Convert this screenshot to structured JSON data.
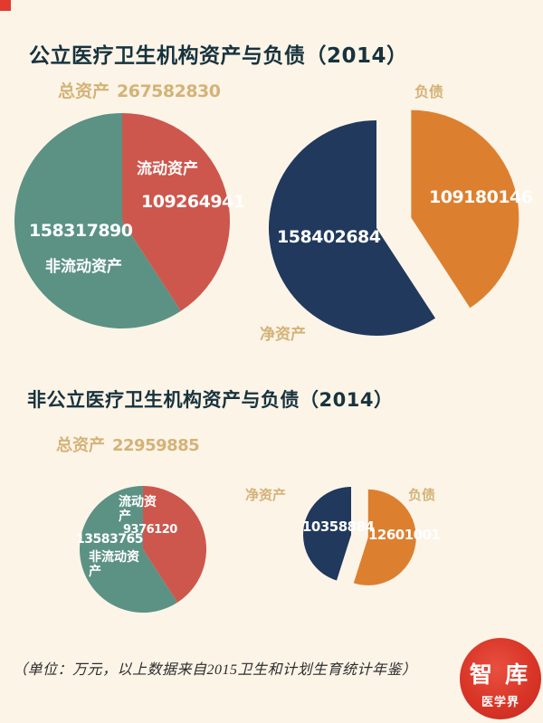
{
  "corner_color": "#e23a2e",
  "background_color": "#fdf4e8",
  "chart_data": [
    {
      "type": "pie",
      "title": "公立医疗卫生机构资产与负债（2014）",
      "total_label": "总资产",
      "total_value": 267582830,
      "pies": [
        {
          "name": "公立-资产构成",
          "slices": [
            {
              "label": "流动资产",
              "value": 109264941,
              "color": "#cd574d",
              "exploded": false
            },
            {
              "label": "非流动资产",
              "value": 158317890,
              "color": "#5b9284",
              "exploded": false
            }
          ]
        },
        {
          "name": "公立-净资产与负债",
          "slices": [
            {
              "label": "负债",
              "value": 109180146,
              "color": "#dc8030",
              "exploded": true
            },
            {
              "label": "净资产",
              "value": 158402684,
              "color": "#20395c",
              "exploded": false
            }
          ]
        }
      ]
    },
    {
      "type": "pie",
      "title": "非公立医疗卫生机构资产与负债（2014）",
      "total_label": "总资产",
      "total_value": 22959885,
      "pies": [
        {
          "name": "非公立-资产构成",
          "slices": [
            {
              "label": "流动资产",
              "value": 9376120,
              "color": "#cd574d",
              "exploded": false
            },
            {
              "label": "非流动资产",
              "value": 13583765,
              "color": "#5b9284",
              "exploded": false
            }
          ]
        },
        {
          "name": "非公立-净资产与负债",
          "slices": [
            {
              "label": "负债",
              "value": 12601001,
              "color": "#dc8030",
              "exploded": true
            },
            {
              "label": "净资产",
              "value": 10358884,
              "color": "#20395c",
              "exploded": false
            }
          ]
        }
      ]
    }
  ],
  "footer": {
    "note": "（单位：万元，以上数据来自2015卫生和计划生育统计年鉴）"
  },
  "logo": {
    "line1": "智 库",
    "line2": "医学界",
    "color": "#d93527"
  }
}
